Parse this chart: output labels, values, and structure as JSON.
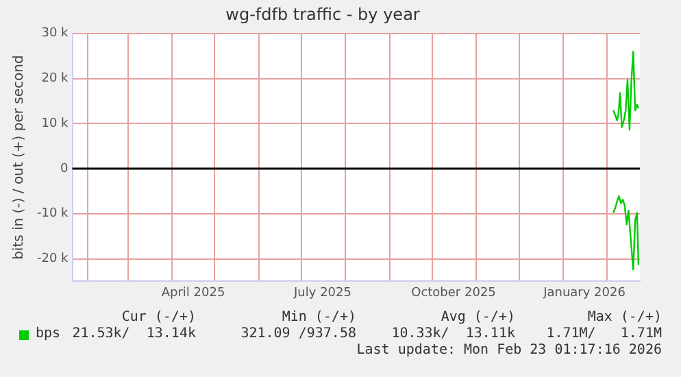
{
  "chart_data": {
    "type": "line",
    "title": "wg-fdfb traffic - by year",
    "ylabel": "bits in (-) / out (+) per second",
    "series": [
      {
        "name": "bps",
        "color": "#00cc00",
        "x": [
          "2026-02-05T07:00",
          "2026-02-06T17:00",
          "2026-02-08",
          "2026-02-09",
          "2026-02-10",
          "2026-02-11T07:00",
          "2026-02-12T17:00",
          "2026-02-14",
          "2026-02-15T07:00",
          "2026-02-16T17:00",
          "2026-02-18",
          "2026-02-19T07:00",
          "2026-02-20T17:00",
          "2026-02-22",
          "2026-02-23"
        ],
        "values": [
          13000,
          11800,
          10700,
          12300,
          16800,
          9200,
          10700,
          12900,
          19700,
          8600,
          19300,
          26000,
          12900,
          14200,
          13400
        ]
      },
      {
        "color": "#00cc00",
        "x": [
          "2026-02-05T07:00",
          "2026-02-06T17:00",
          "2026-02-08",
          "2026-02-09T07:00",
          "2026-02-10T17:00",
          "2026-02-12",
          "2026-02-13T07:00",
          "2026-02-14T17:00",
          "2026-02-16",
          "2026-02-17T07:00",
          "2026-02-19T07:00",
          "2026-02-20T17:00",
          "2026-02-22",
          "2026-02-23"
        ],
        "values": [
          -9800,
          -8700,
          -7200,
          -6100,
          -7700,
          -6900,
          -8200,
          -12400,
          -9300,
          -14500,
          -22400,
          -11400,
          -9800,
          -21400
        ]
      }
    ],
    "xlim": [
      "2025-01-21",
      "2026-02-24"
    ],
    "xticks": [
      {
        "value": "2025-02-01",
        "label": null
      },
      {
        "value": "2025-03-01",
        "label": null
      },
      {
        "value": "2025-04-01",
        "label": null
      },
      {
        "value": "2025-04-16",
        "label": "April 2025"
      },
      {
        "value": "2025-05-01",
        "label": null
      },
      {
        "value": "2025-06-01",
        "label": null
      },
      {
        "value": "2025-07-01",
        "label": null
      },
      {
        "value": "2025-07-16",
        "label": "July 2025"
      },
      {
        "value": "2025-08-01",
        "label": null
      },
      {
        "value": "2025-09-01",
        "label": null
      },
      {
        "value": "2025-10-01",
        "label": null
      },
      {
        "value": "2025-10-16",
        "label": "October 2025"
      },
      {
        "value": "2025-11-01",
        "label": null
      },
      {
        "value": "2025-12-01",
        "label": null
      },
      {
        "value": "2026-01-01",
        "label": null
      },
      {
        "value": "2026-01-16",
        "label": "January 2026"
      },
      {
        "value": "2026-02-01",
        "label": null
      }
    ],
    "ylim": [
      -25000,
      30000
    ],
    "yticks": [
      {
        "value": -20000,
        "label": "-20 k"
      },
      {
        "value": -10000,
        "label": "-10 k"
      },
      0,
      {
        "value": 10000,
        "label": "10 k"
      },
      {
        "value": 20000,
        "label": "20 k"
      },
      {
        "value": 30000,
        "label": "30 k"
      }
    ],
    "ref_lines": [
      {
        "axis": "y",
        "value": 0,
        "color": "#000000"
      }
    ],
    "grid": true,
    "legend": "bottom left",
    "marker": "none",
    "line_style": "solid",
    "annotations": [
      "Cur (-/+)",
      "Min (-/+)",
      "Avg (-/+)",
      "Max (-/+)",
      "21.53k/  13.14k",
      "321.09 /937.58",
      "10.33k/  13.11k",
      "1.71M/   1.71M",
      "Last update: Mon Feb 23 01:17:16 2026"
    ]
  }
}
